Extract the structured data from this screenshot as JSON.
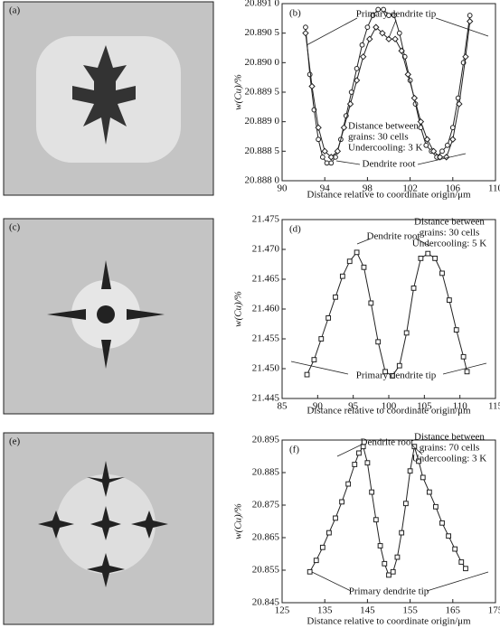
{
  "images": [
    {
      "label": "(a)"
    },
    {
      "label": "(c)"
    },
    {
      "label": "(e)"
    }
  ],
  "chart_data": [
    {
      "type": "line",
      "label": "(b)",
      "xlabel": "Distance relative to coordinate origin/μm",
      "ylabel": "w(Cu)/%",
      "xlim": [
        90,
        110
      ],
      "xticks": [
        90,
        94,
        98,
        102,
        106,
        110
      ],
      "ylim": [
        20.888,
        20.891
      ],
      "yticks": [
        {
          "value": 20.888,
          "label": "20.888 0"
        },
        {
          "value": 20.8885,
          "label": "20.888 5"
        },
        {
          "value": 20.889,
          "label": "20.889 0"
        },
        {
          "value": 20.8895,
          "label": "20.889 5"
        },
        {
          "value": 20.89,
          "label": "20.890 0"
        },
        {
          "value": 20.8905,
          "label": "20.890 5"
        },
        {
          "value": 20.891,
          "label": "20.891 0"
        }
      ],
      "annotations": [
        "Primary dendrite tip",
        "Distance between",
        "grains: 30 cells",
        "Undercooling: 3 K",
        "Dendrite root"
      ],
      "series": [
        {
          "color": "#222222",
          "marker": "circle",
          "x": [
            92.2,
            92.6,
            93,
            93.4,
            93.8,
            94.2,
            94.6,
            95,
            95.5,
            96,
            96.5,
            97,
            97.5,
            98,
            98.5,
            99,
            99.5,
            100,
            100.5,
            101,
            101.5,
            102,
            102.5,
            103,
            103.5,
            104,
            104.5,
            105,
            105.5,
            106,
            106.5,
            107,
            107.6
          ],
          "values": [
            20.8906,
            20.8898,
            20.8892,
            20.8887,
            20.8884,
            20.8883,
            20.8883,
            20.8884,
            20.8887,
            20.8891,
            20.8895,
            20.8899,
            20.8903,
            20.8906,
            20.8908,
            20.8909,
            20.8909,
            20.8908,
            20.8908,
            20.8905,
            20.8901,
            20.8897,
            20.8893,
            20.8889,
            20.8886,
            20.8885,
            20.8884,
            20.8885,
            20.8886,
            20.8889,
            20.8894,
            20.89,
            20.8908
          ]
        },
        {
          "color": "#222222",
          "marker": "diamond",
          "x": [
            92.2,
            92.8,
            93.4,
            94,
            94.6,
            95.2,
            95.8,
            96.4,
            97,
            97.6,
            98.2,
            98.8,
            99.4,
            100,
            100.6,
            101.2,
            101.8,
            102.4,
            103,
            103.6,
            104.2,
            104.8,
            105.4,
            106,
            106.6,
            107.2,
            107.6
          ],
          "values": [
            20.8905,
            20.8896,
            20.8889,
            20.8885,
            20.8884,
            20.8885,
            20.8889,
            20.8893,
            20.8897,
            20.8901,
            20.8904,
            20.8906,
            20.8905,
            20.8904,
            20.8904,
            20.8902,
            20.8898,
            20.8894,
            20.889,
            20.8887,
            20.8885,
            20.8884,
            20.8884,
            20.8887,
            20.8893,
            20.8901,
            20.8907
          ]
        }
      ]
    },
    {
      "type": "line",
      "label": "(d)",
      "xlabel": "Distance relative to coordinate origin/μm",
      "ylabel": "w(Cu)/%",
      "xlim": [
        85,
        115
      ],
      "xticks": [
        85,
        90,
        95,
        100,
        105,
        110,
        115
      ],
      "ylim": [
        21.445,
        21.475
      ],
      "yticks": [
        21.445,
        {
          "value": 21.45,
          "label": "21.450"
        },
        21.455,
        {
          "value": 21.46,
          "label": "21.460"
        },
        21.465,
        {
          "value": 21.47,
          "label": "21.470"
        },
        21.475
      ],
      "annotations": [
        "Dendrite root",
        "Distance between",
        "grains: 30 cells",
        "Undercooling: 5 K",
        "Primary dendrite tip"
      ],
      "series": [
        {
          "color": "#222222",
          "marker": "square",
          "x": [
            88.5,
            89.5,
            90.5,
            91.5,
            92.5,
            93.5,
            94.5,
            95.5,
            96.5,
            97.5,
            98.5,
            99.5,
            100.5,
            101.5,
            102.5,
            103.5,
            104.5,
            105.5,
            106.5,
            107.5,
            108.5,
            109.5,
            110.5,
            111
          ],
          "values": [
            21.449,
            21.4515,
            21.455,
            21.4585,
            21.462,
            21.4655,
            21.468,
            21.4695,
            21.467,
            21.461,
            21.4545,
            21.4495,
            21.4488,
            21.4505,
            21.456,
            21.4635,
            21.4685,
            21.4693,
            21.4685,
            21.466,
            21.4615,
            21.4565,
            21.452,
            21.4495
          ]
        }
      ]
    },
    {
      "type": "line",
      "label": "(f)",
      "xlabel": "Distance relative to coordinate origin/μm",
      "ylabel": "w(Cu)/%",
      "xlim": [
        125,
        175
      ],
      "xticks": [
        125,
        135,
        145,
        155,
        165,
        175
      ],
      "ylim": [
        20.845,
        20.895
      ],
      "yticks": [
        20.845,
        20.855,
        20.865,
        20.875,
        20.885,
        20.895
      ],
      "annotations": [
        "Dendrite root",
        "Distance between",
        "grains: 70 cells",
        "Undercooling: 3 K",
        "Primary dendrite tip"
      ],
      "series": [
        {
          "color": "#222222",
          "marker": "square",
          "x": [
            131.5,
            133,
            134.5,
            136,
            137.5,
            139,
            140.5,
            142,
            143,
            144,
            145,
            146,
            147,
            148,
            149,
            150,
            151,
            152,
            153,
            154,
            155,
            156,
            157,
            158,
            159.5,
            161,
            162.5,
            164,
            165.5,
            167,
            168
          ],
          "values": [
            20.8545,
            20.858,
            20.862,
            20.8665,
            20.871,
            20.876,
            20.8815,
            20.8875,
            20.891,
            20.893,
            20.888,
            20.879,
            20.8705,
            20.8625,
            20.857,
            20.8535,
            20.8545,
            20.859,
            20.8665,
            20.8755,
            20.8855,
            20.893,
            20.8885,
            20.8835,
            20.879,
            20.8745,
            20.8695,
            20.8655,
            20.8615,
            20.8575,
            20.8555
          ]
        }
      ]
    }
  ]
}
